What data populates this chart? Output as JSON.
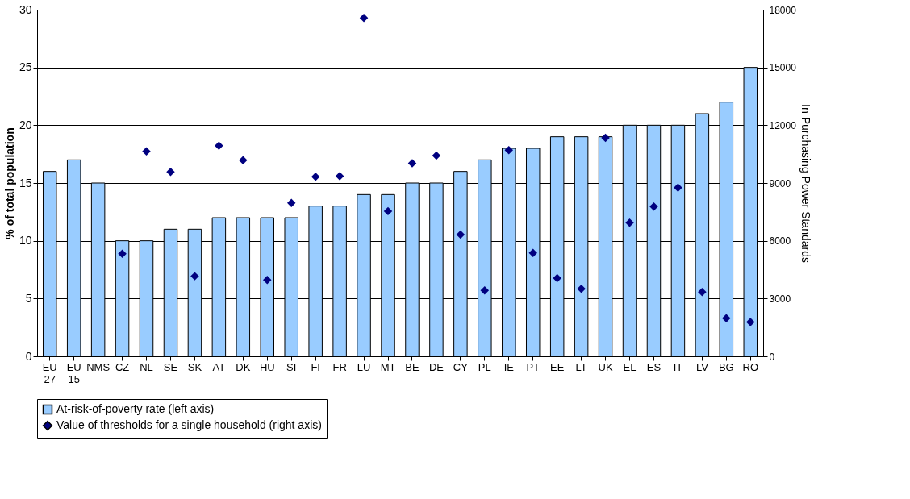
{
  "chart_data": {
    "type": "bar",
    "ylabel": "% of total population",
    "y2label": "In Purchasing Power Standards",
    "categories": [
      "EU 27",
      "EU 15",
      "NMS",
      "CZ",
      "NL",
      "SE",
      "SK",
      "AT",
      "DK",
      "HU",
      "SI",
      "FI",
      "FR",
      "LU",
      "MT",
      "BE",
      "DE",
      "CY",
      "PL",
      "IE",
      "PT",
      "EE",
      "LT",
      "UK",
      "EL",
      "ES",
      "IT",
      "LV",
      "BG",
      "RO"
    ],
    "series": [
      {
        "name": "At-risk-of-poverty rate (left axis)",
        "color": "#99ccff",
        "values": [
          16,
          17,
          15,
          10,
          10,
          11,
          11,
          12,
          12,
          12,
          12,
          13,
          13,
          14,
          14,
          15,
          15,
          16,
          17,
          18,
          18,
          19,
          19,
          19,
          20,
          20,
          20,
          21,
          22,
          25
        ]
      },
      {
        "name": "Value of thresholds for a single household (right axis)",
        "type": "scatter",
        "axis": "y2",
        "marker": "diamond",
        "color": "#000080",
        "values": [
          null,
          null,
          null,
          5330,
          10640,
          9580,
          4160,
          10940,
          10180,
          3970,
          7960,
          9320,
          9360,
          17570,
          7540,
          10030,
          10420,
          6320,
          3420,
          10710,
          5370,
          4060,
          3510,
          11340,
          6940,
          7780,
          8760,
          3340,
          1980,
          1780
        ]
      }
    ],
    "ylim": [
      0,
      30
    ],
    "yticks": [
      0,
      5,
      10,
      15,
      20,
      25,
      30
    ],
    "y2lim": [
      0,
      18000
    ],
    "y2ticks": [
      0,
      3000,
      6000,
      9000,
      12000,
      15000,
      18000
    ],
    "grid": "y",
    "legend": "bottom"
  }
}
